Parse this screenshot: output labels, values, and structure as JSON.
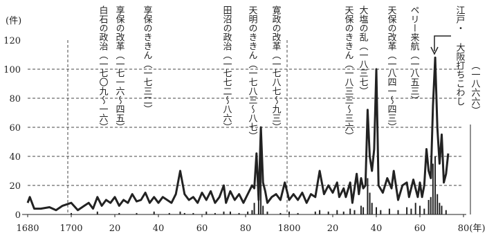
{
  "chart_data": {
    "type": "line",
    "y_unit": "(件)",
    "x_unit": "(年)",
    "xlim": [
      1680,
      1880
    ],
    "xticks": [
      1680,
      1700,
      {
        "value": 1720,
        "label": "20"
      },
      {
        "value": 1740,
        "label": "40"
      },
      {
        "value": 1760,
        "label": "60"
      },
      {
        "value": 1780,
        "label": "80"
      },
      1800,
      {
        "value": 1820,
        "label": "20"
      },
      {
        "value": 1840,
        "label": "40"
      },
      {
        "value": 1860,
        "label": "60"
      },
      {
        "value": 1880,
        "label": "80"
      }
    ],
    "ylim": [
      0,
      120
    ],
    "yticks": [
      0,
      20,
      40,
      60,
      80,
      100,
      120
    ],
    "grid": true,
    "series": [
      {
        "type": "line",
        "color": "#222222",
        "x": [
          1680,
          1681,
          1683,
          1686,
          1690,
          1693,
          1696,
          1700,
          1703,
          1706,
          1708,
          1710,
          1712,
          1714,
          1716,
          1718,
          1720,
          1722,
          1724,
          1726,
          1728,
          1730,
          1732,
          1734,
          1736,
          1738,
          1740,
          1742,
          1744,
          1746,
          1748,
          1750,
          1752,
          1754,
          1756,
          1758,
          1760,
          1762,
          1764,
          1766,
          1768,
          1770,
          1771,
          1773,
          1775,
          1777,
          1779,
          1781,
          1783,
          1784,
          1785,
          1786,
          1787,
          1788,
          1789,
          1790,
          1792,
          1794,
          1796,
          1798,
          1800,
          1802,
          1804,
          1806,
          1808,
          1810,
          1812,
          1814,
          1816,
          1818,
          1820,
          1822,
          1823,
          1825,
          1826,
          1828,
          1829,
          1831,
          1832,
          1833,
          1834,
          1835,
          1836,
          1837,
          1838,
          1839,
          1840,
          1841,
          1843,
          1845,
          1847,
          1848,
          1850,
          1852,
          1854,
          1855,
          1857,
          1858,
          1859,
          1860,
          1861,
          1862,
          1863,
          1864,
          1865,
          1866,
          1867,
          1868,
          1869,
          1870,
          1871,
          1872,
          1873
        ],
        "values": [
          8,
          12,
          4,
          4,
          5,
          3,
          6,
          8,
          3,
          6,
          8,
          4,
          12,
          6,
          10,
          8,
          12,
          6,
          10,
          8,
          14,
          9,
          10,
          15,
          8,
          12,
          8,
          12,
          10,
          8,
          14,
          30,
          14,
          10,
          12,
          8,
          15,
          10,
          16,
          8,
          12,
          20,
          8,
          16,
          10,
          14,
          8,
          14,
          20,
          18,
          42,
          10,
          60,
          22,
          16,
          8,
          12,
          14,
          10,
          22,
          10,
          14,
          10,
          15,
          8,
          14,
          12,
          30,
          14,
          20,
          15,
          22,
          12,
          18,
          12,
          22,
          8,
          28,
          14,
          25,
          18,
          20,
          72,
          40,
          30,
          45,
          100,
          20,
          15,
          25,
          18,
          30,
          10,
          20,
          22,
          12,
          24,
          18,
          12,
          22,
          12,
          20,
          45,
          30,
          25,
          75,
          108,
          60,
          35,
          55,
          22,
          28,
          42
        ]
      },
      {
        "type": "bar",
        "color": "#222222",
        "x": [
          1700,
          1712,
          1722,
          1730,
          1738,
          1745,
          1750,
          1752,
          1756,
          1762,
          1766,
          1770,
          1773,
          1777,
          1781,
          1783,
          1784,
          1786,
          1787,
          1788,
          1790,
          1796,
          1800,
          1804,
          1812,
          1814,
          1818,
          1822,
          1825,
          1828,
          1830,
          1833,
          1834,
          1836,
          1837,
          1838,
          1840,
          1842,
          1846,
          1850,
          1854,
          1856,
          1858,
          1860,
          1862,
          1864,
          1865,
          1866,
          1867,
          1868,
          1869,
          1870,
          1872
        ],
        "values": [
          1,
          2,
          1,
          1,
          2,
          1,
          2,
          1,
          1,
          2,
          1,
          2,
          2,
          1,
          2,
          3,
          8,
          15,
          55,
          6,
          2,
          1,
          2,
          1,
          2,
          3,
          2,
          3,
          2,
          4,
          3,
          6,
          5,
          25,
          15,
          8,
          5,
          3,
          4,
          3,
          5,
          4,
          8,
          6,
          4,
          10,
          12,
          35,
          40,
          14,
          8,
          6,
          3
        ]
      }
    ],
    "annotations": [
      "白石の政治（一七〇九〜一六）",
      "享保の改革（一七一六〜四五）",
      "享保のききん（一七三二）",
      "田沼の政治（一七七二〜八六）",
      "天明のききん（一七八三〜八七）",
      "寛政の改革（一七八七〜九三）",
      "天保のききん（一八三三〜三六）",
      "大塩の乱（一八三七）",
      "天保の改革（一八四一〜四三）",
      "ペリー来航（一八五三）",
      "江戸・",
      "大阪打ちこわし",
      "（一八六六）"
    ]
  }
}
